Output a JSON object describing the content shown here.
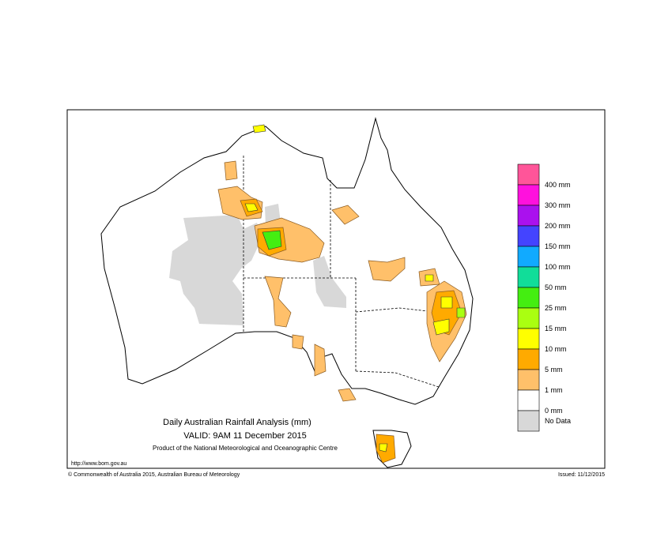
{
  "title": "Daily Australian Rainfall Analysis (mm)",
  "valid": "VALID: 9AM 11 December 2015",
  "product": "Product of the National Meteorological and Oceanographic Centre",
  "url": "http://www.bom.gov.au",
  "copyright": "© Commonwealth of Australia 2015, Australian Bureau of Meteorology",
  "issued": "Issued: 11/12/2015",
  "legend": {
    "colors": [
      "#ff5599",
      "#ff11dd",
      "#aa11ee",
      "#4444ff",
      "#11aaff",
      "#11dd99",
      "#44ee11",
      "#aaff11",
      "#ffff00",
      "#ffaa00",
      "#ffc06a",
      "#ffffff",
      "#d8d8d8"
    ],
    "labels": [
      "400 mm",
      "300 mm",
      "200 mm",
      "150 mm",
      "100 mm",
      "50 mm",
      "25 mm",
      "15 mm",
      "10 mm",
      "5 mm",
      "1 mm",
      "0 mm",
      "No Data"
    ]
  }
}
